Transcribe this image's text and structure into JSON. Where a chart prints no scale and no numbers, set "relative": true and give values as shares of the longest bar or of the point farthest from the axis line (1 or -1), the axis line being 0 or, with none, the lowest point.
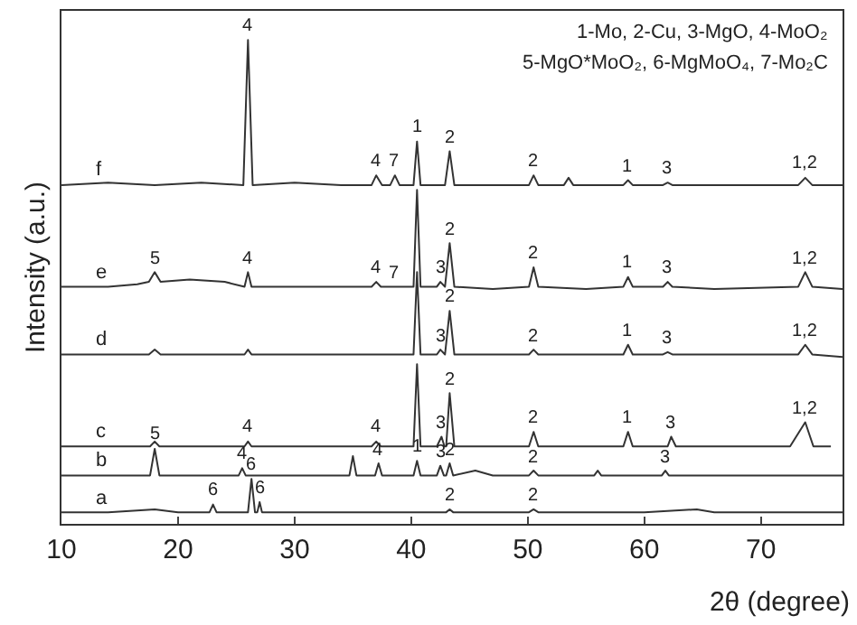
{
  "chart_data": {
    "type": "line",
    "relative": true,
    "xlabel": "2θ (degree)",
    "ylabel": "Intensity (a.u.)",
    "xlim": [
      10,
      77
    ],
    "xticks": [
      10,
      20,
      30,
      40,
      50,
      60,
      70
    ],
    "legend": false,
    "grid": false,
    "marker": "none",
    "line_style": "solid",
    "series": [
      {
        "name": "a",
        "color": "#333333",
        "x": [
          10,
          14,
          18,
          20,
          22.7,
          23.0,
          23.3,
          26.0,
          26.3,
          26.6,
          26.8,
          27.0,
          27.2,
          30,
          35,
          40,
          43.0,
          43.3,
          43.6,
          50.1,
          50.5,
          50.9,
          55,
          60,
          64.5,
          66,
          70,
          77
        ],
        "values": [
          0.024,
          0.024,
          0.03,
          0.024,
          0.024,
          0.04,
          0.024,
          0.024,
          0.093,
          0.024,
          0.024,
          0.045,
          0.024,
          0.024,
          0.024,
          0.024,
          0.024,
          0.03,
          0.024,
          0.024,
          0.03,
          0.024,
          0.024,
          0.024,
          0.03,
          0.024,
          0.024,
          0.024
        ]
      },
      {
        "name": "b",
        "color": "#333333",
        "x": [
          10,
          14,
          17.6,
          18.0,
          18.4,
          22,
          25.2,
          25.5,
          25.8,
          30,
          34.7,
          35.0,
          35.3,
          36.9,
          37.2,
          37.5,
          40.2,
          40.5,
          40.8,
          42.2,
          42.5,
          42.8,
          43.0,
          43.3,
          43.6,
          45.5,
          47,
          50.1,
          50.5,
          50.9,
          55.7,
          56.0,
          56.3,
          61.5,
          61.8,
          62.1,
          66,
          72,
          77
        ],
        "values": [
          0.1,
          0.1,
          0.1,
          0.155,
          0.1,
          0.1,
          0.1,
          0.115,
          0.1,
          0.1,
          0.1,
          0.14,
          0.1,
          0.1,
          0.125,
          0.1,
          0.1,
          0.13,
          0.1,
          0.1,
          0.12,
          0.1,
          0.1,
          0.125,
          0.1,
          0.11,
          0.1,
          0.1,
          0.11,
          0.1,
          0.1,
          0.11,
          0.1,
          0.1,
          0.11,
          0.1,
          0.1,
          0.1,
          0.1
        ]
      },
      {
        "name": "c",
        "color": "#333333",
        "x": [
          10,
          14,
          17.6,
          18.0,
          18.4,
          22,
          25.7,
          26.0,
          26.3,
          30,
          36.6,
          37.0,
          37.4,
          40.2,
          40.5,
          40.8,
          42.2,
          42.6,
          42.85,
          43.0,
          43.3,
          43.7,
          47,
          50.1,
          50.5,
          50.9,
          55,
          58.2,
          58.6,
          59.0,
          62.0,
          62.3,
          62.7,
          66,
          72.5,
          73.8,
          74.5,
          76
        ],
        "values": [
          0.16,
          0.16,
          0.16,
          0.17,
          0.16,
          0.16,
          0.16,
          0.17,
          0.16,
          0.16,
          0.16,
          0.17,
          0.16,
          0.16,
          0.33,
          0.16,
          0.16,
          0.18,
          0.16,
          0.16,
          0.27,
          0.16,
          0.16,
          0.16,
          0.19,
          0.16,
          0.16,
          0.16,
          0.19,
          0.16,
          0.16,
          0.18,
          0.16,
          0.16,
          0.16,
          0.21,
          0.16,
          0.16
        ]
      },
      {
        "name": "d",
        "color": "#333333",
        "x": [
          10,
          14,
          17.5,
          18.0,
          18.5,
          22,
          25.7,
          26.0,
          26.3,
          30,
          35,
          40.2,
          40.5,
          40.8,
          42.2,
          42.5,
          42.9,
          43.3,
          43.7,
          47,
          50.1,
          50.5,
          50.9,
          55,
          58.2,
          58.6,
          59.0,
          61.6,
          62.0,
          62.4,
          66,
          73.2,
          73.8,
          74.4,
          77
        ],
        "values": [
          0.35,
          0.35,
          0.35,
          0.36,
          0.35,
          0.35,
          0.35,
          0.36,
          0.35,
          0.35,
          0.35,
          0.35,
          0.52,
          0.35,
          0.35,
          0.36,
          0.35,
          0.44,
          0.35,
          0.35,
          0.35,
          0.36,
          0.35,
          0.35,
          0.35,
          0.37,
          0.35,
          0.35,
          0.355,
          0.35,
          0.35,
          0.35,
          0.37,
          0.35,
          0.345
        ]
      },
      {
        "name": "e",
        "color": "#333333",
        "x": [
          10,
          14,
          16.5,
          17.5,
          18.0,
          18.5,
          21,
          24,
          25.7,
          26.0,
          26.3,
          30,
          34,
          36.6,
          37.0,
          37.4,
          40.2,
          40.5,
          40.8,
          42.2,
          42.5,
          42.9,
          43.3,
          43.7,
          47,
          50.1,
          50.5,
          50.9,
          55,
          58.2,
          58.6,
          59.0,
          61.6,
          62.0,
          62.4,
          66,
          73.2,
          73.8,
          74.4,
          77
        ],
        "values": [
          0.49,
          0.49,
          0.495,
          0.5,
          0.52,
          0.5,
          0.505,
          0.5,
          0.49,
          0.52,
          0.49,
          0.49,
          0.49,
          0.49,
          0.5,
          0.49,
          0.49,
          0.69,
          0.49,
          0.49,
          0.5,
          0.49,
          0.58,
          0.49,
          0.485,
          0.49,
          0.53,
          0.49,
          0.485,
          0.49,
          0.51,
          0.49,
          0.49,
          0.5,
          0.49,
          0.485,
          0.49,
          0.52,
          0.49,
          0.485
        ]
      },
      {
        "name": "f",
        "color": "#333333",
        "x": [
          10,
          14,
          18,
          22,
          25.6,
          26.0,
          26.4,
          30,
          34,
          36.6,
          37.0,
          37.5,
          38.2,
          38.6,
          39.0,
          40.2,
          40.5,
          40.8,
          42.9,
          43.3,
          43.7,
          47,
          50.1,
          50.5,
          50.9,
          53.1,
          53.5,
          53.9,
          58.2,
          58.6,
          59.0,
          61.6,
          62.0,
          62.4,
          66,
          73.2,
          73.8,
          74.4,
          77
        ],
        "values": [
          0.7,
          0.705,
          0.7,
          0.705,
          0.7,
          1.0,
          0.7,
          0.705,
          0.7,
          0.7,
          0.72,
          0.7,
          0.7,
          0.72,
          0.7,
          0.7,
          0.79,
          0.7,
          0.7,
          0.77,
          0.7,
          0.7,
          0.7,
          0.72,
          0.7,
          0.7,
          0.715,
          0.7,
          0.7,
          0.71,
          0.7,
          0.7,
          0.705,
          0.7,
          0.7,
          0.7,
          0.715,
          0.7,
          0.7
        ]
      }
    ],
    "annotations": [
      "1-Mo, 2-Cu, 3-MgO, 4-MoO₂",
      "5-MgO*MoO₂, 6-MgMoO₄, 7-Mo₂C",
      {
        "text": "4",
        "x": 26.0,
        "y": 1.0
      },
      {
        "text": "4",
        "x": 37.0,
        "y": 0.72
      },
      {
        "text": "7",
        "x": 38.6,
        "y": 0.72
      },
      {
        "text": "1",
        "x": 40.5,
        "y": 0.79
      },
      {
        "text": "2",
        "x": 43.3,
        "y": 0.77
      },
      {
        "text": "2",
        "x": 50.5,
        "y": 0.72
      },
      {
        "text": "1",
        "x": 58.6,
        "y": 0.71
      },
      {
        "text": "3",
        "x": 62.0,
        "y": 0.705
      },
      {
        "text": "1,2",
        "x": 73.8,
        "y": 0.715
      },
      {
        "text": "5",
        "x": 18.0,
        "y": 0.52
      },
      {
        "text": "4",
        "x": 26.0,
        "y": 0.52
      },
      {
        "text": "4",
        "x": 37.0,
        "y": 0.5
      },
      {
        "text": "7",
        "x": 38.6,
        "y": 0.49
      },
      {
        "text": "3",
        "x": 42.5,
        "y": 0.5
      },
      {
        "text": "2",
        "x": 43.3,
        "y": 0.58
      },
      {
        "text": "2",
        "x": 50.5,
        "y": 0.53
      },
      {
        "text": "1",
        "x": 58.6,
        "y": 0.51
      },
      {
        "text": "3",
        "x": 62.0,
        "y": 0.5
      },
      {
        "text": "1,2",
        "x": 73.8,
        "y": 0.52
      },
      {
        "text": "3",
        "x": 42.5,
        "y": 0.36
      },
      {
        "text": "2",
        "x": 43.3,
        "y": 0.44
      },
      {
        "text": "2",
        "x": 50.5,
        "y": 0.36
      },
      {
        "text": "1",
        "x": 58.6,
        "y": 0.37
      },
      {
        "text": "3",
        "x": 62.0,
        "y": 0.355
      },
      {
        "text": "1,2",
        "x": 73.8,
        "y": 0.37
      },
      {
        "text": "4",
        "x": 26.0,
        "y": 0.17
      },
      {
        "text": "4",
        "x": 37.0,
        "y": 0.17
      },
      {
        "text": "3",
        "x": 42.6,
        "y": 0.18
      },
      {
        "text": "2",
        "x": 43.3,
        "y": 0.27
      },
      {
        "text": "2",
        "x": 50.5,
        "y": 0.19
      },
      {
        "text": "1",
        "x": 58.6,
        "y": 0.19
      },
      {
        "text": "3",
        "x": 62.3,
        "y": 0.18
      },
      {
        "text": "1,2",
        "x": 73.8,
        "y": 0.21
      },
      {
        "text": "5",
        "x": 18.0,
        "y": 0.155
      },
      {
        "text": "4",
        "x": 25.5,
        "y": 0.115
      },
      {
        "text": "4",
        "x": 37.2,
        "y": 0.125
      },
      {
        "text": "1",
        "x": 40.5,
        "y": 0.13
      },
      {
        "text": "3",
        "x": 42.5,
        "y": 0.12
      },
      {
        "text": "2",
        "x": 43.3,
        "y": 0.125
      },
      {
        "text": "2",
        "x": 50.5,
        "y": 0.11
      },
      {
        "text": "3",
        "x": 61.8,
        "y": 0.11
      },
      {
        "text": "6",
        "x": 23.0,
        "y": 0.04
      },
      {
        "text": "6",
        "x": 26.3,
        "y": 0.093
      },
      {
        "text": "6",
        "x": 27.0,
        "y": 0.045
      },
      {
        "text": "2",
        "x": 43.3,
        "y": 0.03
      },
      {
        "text": "2",
        "x": 50.5,
        "y": 0.03
      }
    ]
  }
}
